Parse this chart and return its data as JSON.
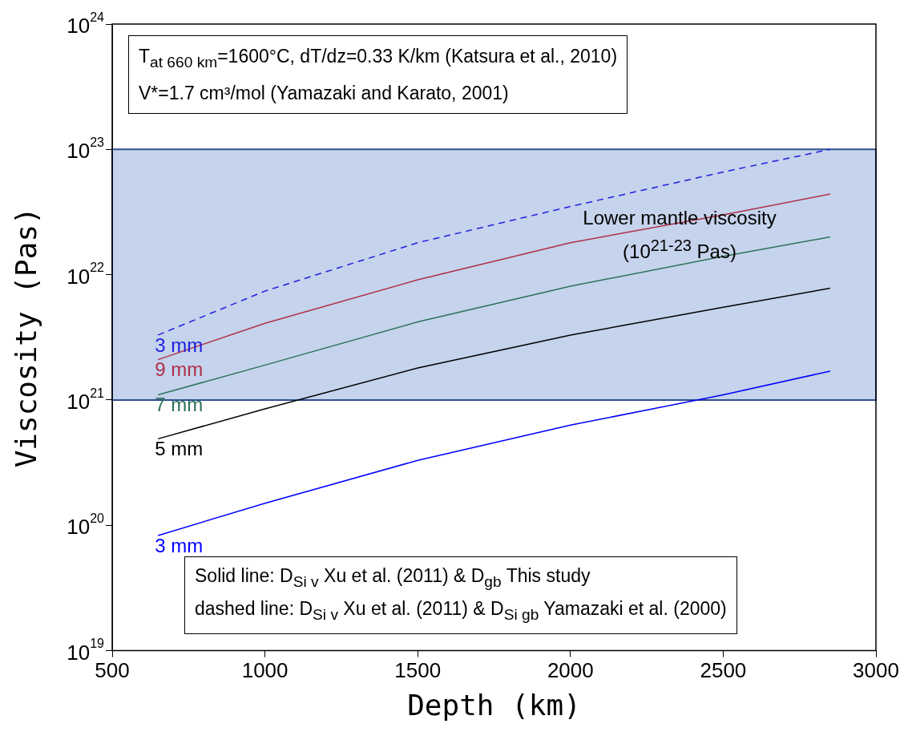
{
  "chart_data": {
    "type": "line",
    "xlabel": "Depth (km)",
    "ylabel": "Viscosity (Pas)",
    "log": "y",
    "grid": false,
    "legend": false,
    "marker": "none",
    "xlim": [
      500,
      3000
    ],
    "xticks": [
      500,
      1000,
      1500,
      2000,
      2500,
      3000
    ],
    "ylim": [
      1e+19,
      1e+24
    ],
    "yticks": [
      {
        "value": 1e+19,
        "label": "10$^{19}$"
      },
      {
        "value": 1e+20,
        "label": "10$^{20}$"
      },
      {
        "value": 1e+21,
        "label": "10$^{21}$"
      },
      {
        "value": 1e+22,
        "label": "10$^{22}$"
      },
      {
        "value": 1e+23,
        "label": "10$^{23}$"
      },
      {
        "value": 1e+24,
        "label": "10$^{24}$"
      }
    ],
    "x": [
      650,
      1000,
      1500,
      2000,
      2500,
      2850
    ],
    "series": [
      {
        "name": "3 mm",
        "color": "#1f1fe0",
        "line_style": "dashed",
        "values": [
          3.3e+21,
          7.4e+21,
          1.8e+22,
          3.5e+22,
          6.6e+22,
          1e+23
        ]
      },
      {
        "name": "9 mm",
        "color": "#b0304a",
        "line_style": "solid",
        "values": [
          2.1e+21,
          4.1e+21,
          9.1e+21,
          1.8e+22,
          3e+22,
          4.4e+22
        ]
      },
      {
        "name": "7 mm",
        "color": "#2e7358",
        "line_style": "solid",
        "values": [
          1.1e+21,
          1.9e+21,
          4.2e+21,
          8.1e+21,
          1.4e+22,
          2e+22
        ]
      },
      {
        "name": "5 mm",
        "color": "#000000",
        "line_style": "solid",
        "values": [
          4.9e+20,
          8.5e+20,
          1.8e+21,
          3.3e+21,
          5.5e+21,
          7.8e+21
        ]
      },
      {
        "name": "3 mm",
        "color": "#0000ff",
        "line_style": "solid",
        "values": [
          8.3e+19,
          1.5e+20,
          3.3e+20,
          6.3e+20,
          1.1e+21,
          1.7e+21
        ]
      }
    ],
    "bands": [
      {
        "axis": "y",
        "from": 1e+21,
        "to": 1e+23,
        "label": "Lower mantle viscosity (10$^{21-23}$ Pas)",
        "color": "#c5d3ec"
      }
    ],
    "annotations": [
      "T$_{at 660 km}$=1600°C, dT/dz=0.33 K/km (Katsura et al., 2010)",
      "V*=1.7 cm³/mol (Yamazaki and Karato, 2001)",
      "Solid line: D$_{Si v}$ Xu et al. (2011) & D$_{gb}$ This study",
      "dashed line: D$_{Si v}$ Xu et al. (2011) & D$_{Si gb}$ Yamazaki et al. (2000)"
    ]
  }
}
